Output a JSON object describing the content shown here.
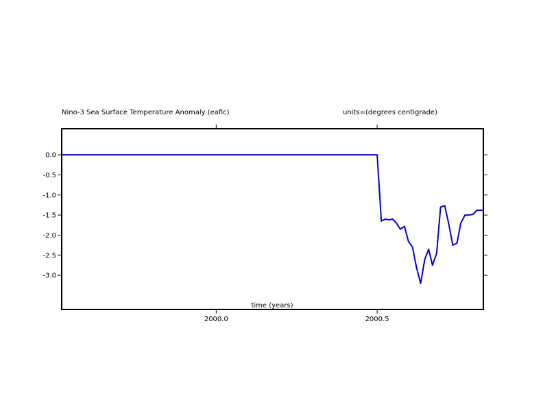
{
  "chart_data": {
    "type": "line",
    "title": "Nino-3 Sea Surface Temperature Anomaly (eafic)",
    "units_label": "units=(degrees centigrade)",
    "xlabel": "time (years)",
    "ylabel": "",
    "xlim": [
      1999.52,
      2000.83
    ],
    "ylim": [
      -3.85,
      0.65
    ],
    "x_ticks": [
      2000.0,
      2000.5
    ],
    "x_tick_labels": [
      "2000.0",
      "2000.5"
    ],
    "y_ticks": [
      0.0,
      -0.5,
      -1.0,
      -1.5,
      -2.0,
      -2.5,
      -3.0
    ],
    "y_tick_labels": [
      "0.0",
      "-0.5",
      "-1.0",
      "-1.5",
      "-2.0",
      "-2.5",
      "-3.0"
    ],
    "grid": false,
    "series": [
      {
        "line_color": "#0000cc",
        "x": [
          1999.52,
          2000.5,
          2000.513,
          2000.525,
          2000.537,
          2000.548,
          2000.56,
          2000.572,
          2000.585,
          2000.597,
          2000.61,
          2000.622,
          2000.635,
          2000.648,
          2000.66,
          2000.672,
          2000.685,
          2000.697,
          2000.71,
          2000.722,
          2000.735,
          2000.748,
          2000.76,
          2000.773,
          2000.785,
          2000.798,
          2000.81,
          2000.83
        ],
        "y": [
          0.0,
          0.0,
          -1.65,
          -1.6,
          -1.62,
          -1.6,
          -1.7,
          -1.85,
          -1.78,
          -2.15,
          -2.3,
          -2.8,
          -3.2,
          -2.6,
          -2.35,
          -2.75,
          -2.45,
          -1.3,
          -1.27,
          -1.7,
          -2.25,
          -2.2,
          -1.7,
          -1.5,
          -1.5,
          -1.48,
          -1.38,
          -1.38
        ]
      }
    ]
  }
}
